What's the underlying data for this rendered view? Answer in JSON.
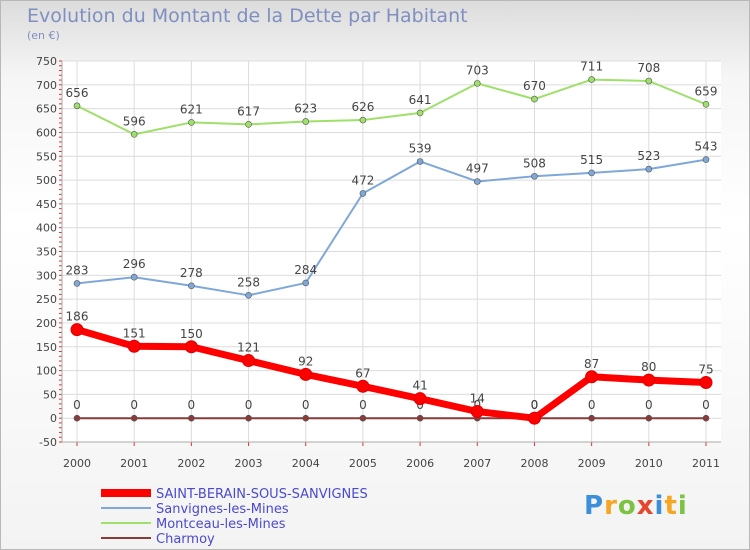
{
  "chart_data": {
    "type": "line",
    "title": "Evolution du Montant de la Dette par Habitant",
    "unit": "(en €)",
    "xlabel": "",
    "ylabel": "",
    "x": [
      "2000",
      "2001",
      "2002",
      "2003",
      "2004",
      "2005",
      "2006",
      "2007",
      "2008",
      "2009",
      "2010",
      "2011"
    ],
    "ylim": [
      -50,
      750
    ],
    "yticks": [
      -50,
      0,
      50,
      100,
      150,
      200,
      250,
      300,
      350,
      400,
      450,
      500,
      550,
      600,
      650,
      700,
      750
    ],
    "grid": true,
    "legend_position": "bottom-left",
    "series": [
      {
        "name": "SAINT-BERAIN-SOUS-SANVIGNES",
        "color": "#ff0000",
        "values": [
          186,
          151,
          150,
          121,
          92,
          67,
          41,
          14,
          0,
          87,
          80,
          75
        ]
      },
      {
        "name": "Sanvignes-les-Mines",
        "color": "#7fa8d8",
        "values": [
          283,
          296,
          278,
          258,
          284,
          472,
          539,
          497,
          508,
          515,
          523,
          543
        ]
      },
      {
        "name": "Montceau-les-Mines",
        "color": "#9ee06a",
        "values": [
          656,
          596,
          621,
          617,
          623,
          626,
          641,
          703,
          670,
          711,
          708,
          659
        ]
      },
      {
        "name": "Charmoy",
        "color": "#8b3a3a",
        "values": [
          0,
          0,
          0,
          0,
          0,
          0,
          0,
          0,
          0,
          0,
          0,
          0
        ]
      }
    ]
  },
  "logo": {
    "letters": [
      "P",
      "r",
      "o",
      "x",
      "i",
      "t",
      "i"
    ],
    "colors": [
      "#3c8fd8",
      "#f5a623",
      "#7dc242",
      "#e8452e",
      "#3c8fd8",
      "#f5a623",
      "#7dc242"
    ]
  }
}
